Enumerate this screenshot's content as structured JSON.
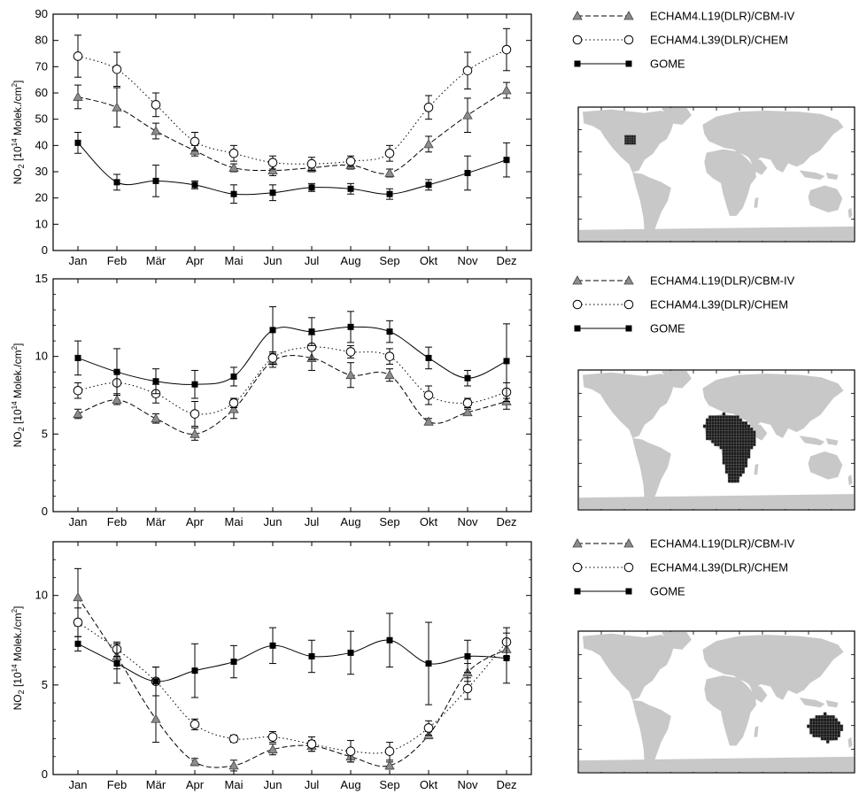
{
  "chart_data": [
    {
      "type": "line",
      "categories": [
        "Jan",
        "Feb",
        "Mär",
        "Apr",
        "Mai",
        "Jun",
        "Jul",
        "Aug",
        "Sep",
        "Okt",
        "Nov",
        "Dez"
      ],
      "ylabel_main": "NO",
      "ylabel_sub": "2",
      "ylabel_unit_pre": " [10",
      "ylabel_sup": "14",
      "ylabel_unit_post": " Molek./cm",
      "ylabel_sup2": "2",
      "ylabel_close": "]",
      "ylim": [
        0,
        90
      ],
      "yticks": [
        0,
        10,
        20,
        30,
        40,
        50,
        60,
        70,
        80,
        90
      ],
      "series": [
        {
          "name": "ECHAM4.L19(DLR)/CBM-IV",
          "marker": "triangle",
          "dash": "dashed",
          "values": [
            58.5,
            54.5,
            45.5,
            38.0,
            31.5,
            30.5,
            31.5,
            32.5,
            29.5,
            40.5,
            51.5,
            61.0
          ],
          "err": [
            4.5,
            7.5,
            3.0,
            2.0,
            1.5,
            2.0,
            1.5,
            1.5,
            1.5,
            3.0,
            6.5,
            3.0
          ]
        },
        {
          "name": "ECHAM4.L39(DLR)/CHEM",
          "marker": "circle",
          "dash": "dotted",
          "values": [
            74.0,
            69.0,
            55.5,
            41.5,
            37.0,
            33.5,
            33.0,
            34.0,
            37.0,
            54.5,
            68.5,
            76.5
          ],
          "err": [
            8.0,
            6.5,
            4.5,
            3.5,
            3.0,
            2.5,
            2.5,
            2.0,
            3.0,
            4.5,
            7.0,
            8.0
          ]
        },
        {
          "name": "GOME",
          "marker": "square",
          "dash": "solid",
          "values": [
            41.0,
            26.0,
            26.5,
            25.0,
            21.5,
            22.0,
            24.0,
            23.5,
            21.5,
            25.0,
            29.5,
            34.5
          ],
          "err": [
            4.0,
            3.0,
            6.0,
            1.5,
            3.5,
            3.0,
            1.5,
            2.0,
            2.0,
            2.0,
            6.5,
            6.5
          ]
        }
      ]
    },
    {
      "type": "line",
      "categories": [
        "Jan",
        "Feb",
        "Mär",
        "Apr",
        "Mai",
        "Jun",
        "Jul",
        "Aug",
        "Sep",
        "Okt",
        "Nov",
        "Dez"
      ],
      "ylabel_main": "NO",
      "ylabel_sub": "2",
      "ylabel_unit_pre": " [10",
      "ylabel_sup": "14",
      "ylabel_unit_post": " Molek./cm",
      "ylabel_sup2": "2",
      "ylabel_close": "]",
      "ylim": [
        0,
        15
      ],
      "yticks": [
        0,
        5,
        10,
        15
      ],
      "series": [
        {
          "name": "ECHAM4.L19(DLR)/CBM-IV",
          "marker": "triangle",
          "dash": "dashed",
          "values": [
            6.3,
            7.2,
            6.0,
            5.0,
            6.6,
            9.7,
            9.9,
            8.8,
            8.8,
            5.8,
            6.4,
            7.1
          ],
          "err": [
            0.3,
            0.3,
            0.3,
            0.4,
            0.6,
            0.4,
            0.8,
            0.8,
            0.4,
            0.2,
            0.2,
            0.5
          ]
        },
        {
          "name": "ECHAM4.L39(DLR)/CHEM",
          "marker": "circle",
          "dash": "dotted",
          "values": [
            7.8,
            8.3,
            7.6,
            6.3,
            7.0,
            9.9,
            10.6,
            10.3,
            10.0,
            7.5,
            7.0,
            7.7
          ],
          "err": [
            0.5,
            0.7,
            0.6,
            0.8,
            0.3,
            0.4,
            0.8,
            0.4,
            0.5,
            0.6,
            0.3,
            0.6
          ]
        },
        {
          "name": "GOME",
          "marker": "square",
          "dash": "solid",
          "values": [
            9.9,
            9.0,
            8.4,
            8.2,
            8.7,
            11.7,
            11.6,
            11.9,
            11.6,
            9.9,
            8.6,
            9.7
          ],
          "err": [
            1.1,
            1.5,
            0.8,
            0.9,
            0.6,
            1.5,
            0.9,
            1.0,
            0.7,
            0.7,
            0.5,
            2.4
          ]
        }
      ]
    },
    {
      "type": "line",
      "categories": [
        "Jan",
        "Feb",
        "Mär",
        "Apr",
        "Mai",
        "Jun",
        "Jul",
        "Aug",
        "Sep",
        "Okt",
        "Nov",
        "Dez"
      ],
      "ylabel_main": "NO",
      "ylabel_sub": "2",
      "ylabel_unit_pre": " [10",
      "ylabel_sup": "14",
      "ylabel_unit_post": " Molek./cm",
      "ylabel_sup2": "2",
      "ylabel_close": "]",
      "ylim": [
        0,
        13
      ],
      "yticks": [
        0,
        5,
        10
      ],
      "series": [
        {
          "name": "ECHAM4.L19(DLR)/CBM-IV",
          "marker": "triangle",
          "dash": "dashed",
          "values": [
            9.9,
            6.6,
            3.1,
            0.7,
            0.5,
            1.4,
            1.6,
            1.0,
            0.5,
            2.2,
            5.7,
            7.0
          ],
          "err": [
            1.6,
            0.7,
            1.3,
            0.2,
            0.3,
            0.3,
            0.3,
            0.3,
            0.2,
            0.2,
            0.5,
            0.5
          ]
        },
        {
          "name": "ECHAM4.L39(DLR)/CHEM",
          "marker": "circle",
          "dash": "dotted",
          "values": [
            8.5,
            7.0,
            5.2,
            2.8,
            2.0,
            2.1,
            1.7,
            1.3,
            1.3,
            2.6,
            4.8,
            7.4
          ],
          "err": [
            0.8,
            0.4,
            0.8,
            0.3,
            0.2,
            0.3,
            0.4,
            0.6,
            0.5,
            0.4,
            0.6,
            0.8
          ]
        },
        {
          "name": "GOME",
          "marker": "square",
          "dash": "solid",
          "values": [
            7.3,
            6.2,
            5.2,
            5.8,
            6.3,
            7.2,
            6.6,
            6.8,
            7.5,
            6.2,
            6.6,
            6.5
          ],
          "err": [
            0.4,
            1.1,
            0.8,
            1.5,
            0.9,
            1.0,
            0.9,
            1.2,
            1.5,
            2.3,
            0.9,
            1.4
          ]
        }
      ]
    }
  ],
  "colors": {
    "triangle_fill": "#8c8c8c",
    "land": "#c8c8c8",
    "highlight": "#1a1a1a",
    "frame": "#000000"
  },
  "maps": [
    {
      "region": "north-america"
    },
    {
      "region": "africa"
    },
    {
      "region": "australia"
    }
  ]
}
